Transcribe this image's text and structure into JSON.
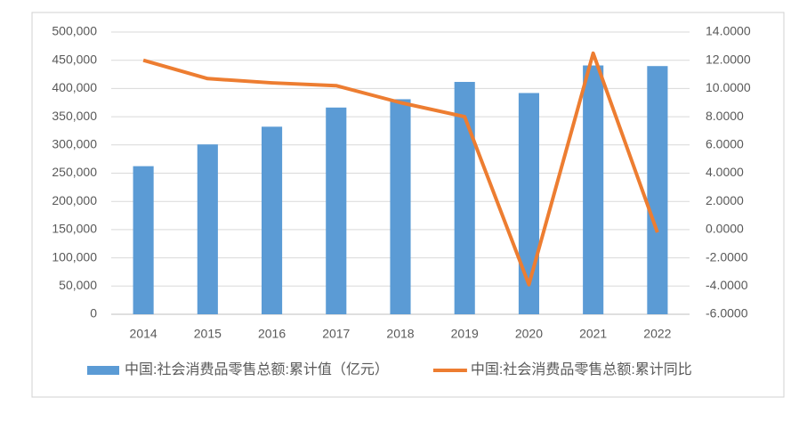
{
  "chart_data": {
    "type": "bar-line",
    "categories": [
      "2014",
      "2015",
      "2016",
      "2017",
      "2018",
      "2019",
      "2020",
      "2021",
      "2022"
    ],
    "series": [
      {
        "name": "中国:社会消费品零售总额:累计值（亿元）",
        "type": "bar",
        "color": "#5b9bd5",
        "values": [
          262394,
          300931,
          332316,
          366262,
          380987,
          411649,
          391981,
          440823,
          439733
        ]
      },
      {
        "name": "中国:社会消费品零售总额:累计同比",
        "type": "line",
        "axis": "y2",
        "color": "#ed7d31",
        "values": [
          12.0,
          10.7,
          10.4,
          10.2,
          9.0,
          8.0,
          -3.9,
          12.5,
          -0.2
        ]
      }
    ],
    "ylim": [
      0,
      500000
    ],
    "yticks": [
      0,
      {
        "value": 50000,
        "label": "50,000"
      },
      {
        "value": 100000,
        "label": "100,000"
      },
      {
        "value": 150000,
        "label": "150,000"
      },
      {
        "value": 200000,
        "label": "200,000"
      },
      {
        "value": 250000,
        "label": "250,000"
      },
      {
        "value": 300000,
        "label": "300,000"
      },
      {
        "value": 350000,
        "label": "350,000"
      },
      {
        "value": 400000,
        "label": "400,000"
      },
      {
        "value": 450000,
        "label": "450,000"
      },
      {
        "value": 500000,
        "label": "500,000"
      }
    ],
    "y2lim": [
      -6,
      14
    ],
    "y2ticks": [
      {
        "value": -6,
        "label": "-6.0000"
      },
      {
        "value": -4,
        "label": "-4.0000"
      },
      {
        "value": -2,
        "label": "-2.0000"
      },
      {
        "value": 0,
        "label": "0.0000"
      },
      {
        "value": 2,
        "label": "2.0000"
      },
      {
        "value": 4,
        "label": "4.0000"
      },
      {
        "value": 6,
        "label": "6.0000"
      },
      {
        "value": 8,
        "label": "8.0000"
      },
      {
        "value": 10,
        "label": "10.0000"
      },
      {
        "value": 12,
        "label": "12.0000"
      },
      {
        "value": 14,
        "label": "14.0000"
      }
    ],
    "grid": true,
    "legend": "bottom"
  }
}
